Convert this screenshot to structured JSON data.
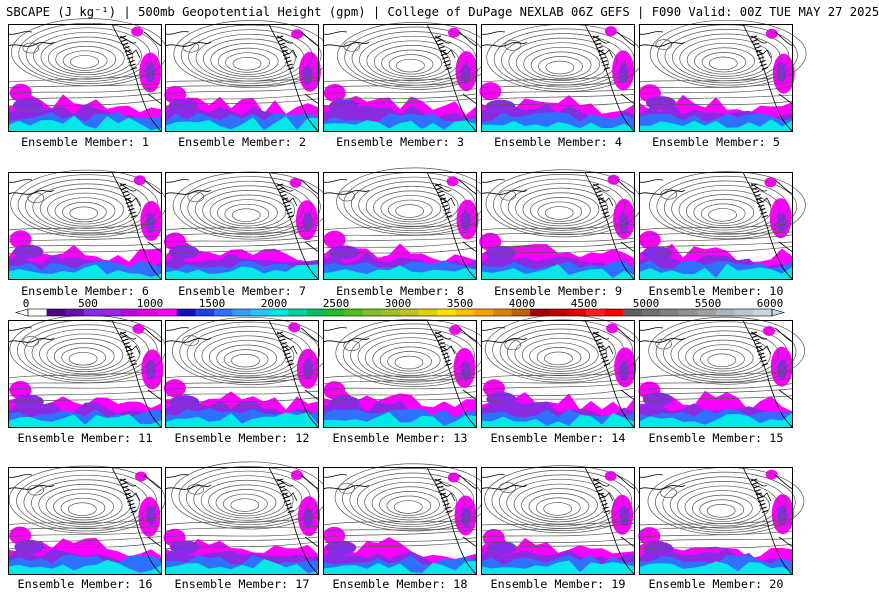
{
  "header": {
    "title": "SBCAPE (J kg⁻¹) | 500mb Geopotential Height (gpm) | College of DuPage NEXLAB 06Z GEFS | F090 Valid: 00Z TUE MAY 27 2025"
  },
  "members": [
    {
      "label": "Ensemble Member: 1"
    },
    {
      "label": "Ensemble Member: 2"
    },
    {
      "label": "Ensemble Member: 3"
    },
    {
      "label": "Ensemble Member: 4"
    },
    {
      "label": "Ensemble Member: 5"
    },
    {
      "label": "Ensemble Member: 6"
    },
    {
      "label": "Ensemble Member: 7"
    },
    {
      "label": "Ensemble Member: 8"
    },
    {
      "label": "Ensemble Member: 9"
    },
    {
      "label": "Ensemble Member: 10"
    },
    {
      "label": "Ensemble Member: 11"
    },
    {
      "label": "Ensemble Member: 12"
    },
    {
      "label": "Ensemble Member: 13"
    },
    {
      "label": "Ensemble Member: 14"
    },
    {
      "label": "Ensemble Member: 15"
    },
    {
      "label": "Ensemble Member: 16"
    },
    {
      "label": "Ensemble Member: 17"
    },
    {
      "label": "Ensemble Member: 18"
    },
    {
      "label": "Ensemble Member: 19"
    },
    {
      "label": "Ensemble Member: 20"
    }
  ],
  "colorbar": {
    "ticks": [
      "0",
      "500",
      "1000",
      "1500",
      "2000",
      "2500",
      "3000",
      "3500",
      "4000",
      "4500",
      "5000",
      "5500",
      "6000"
    ],
    "min": 0,
    "max": 6000,
    "colors": [
      "#ffffff",
      "#4b0082",
      "#6a0dad",
      "#8a2be2",
      "#a020f0",
      "#c000e0",
      "#e000e0",
      "#ff00ff",
      "#1010c0",
      "#2040e0",
      "#3070ff",
      "#30a0ff",
      "#20c8ff",
      "#00e8e8",
      "#00d0a0",
      "#00c060",
      "#20c020",
      "#50c020",
      "#80c020",
      "#a0c020",
      "#c0c020",
      "#e0d000",
      "#ffe000",
      "#ffc000",
      "#ffa000",
      "#e08000",
      "#c06000",
      "#a00000",
      "#c00000",
      "#e00000",
      "#ff2020",
      "#ff0000",
      "#606060",
      "#707070",
      "#808080",
      "#909090",
      "#a0a0a0",
      "#a8b8c0",
      "#b8c8d0",
      "#c8d8e0"
    ]
  },
  "map_colors": {
    "contour": "#555555",
    "coast": "#000000",
    "cape_low": "#ff00ff",
    "cape_mid": "#8a2be2",
    "cape_high": "#3070ff",
    "cape_peak": "#00e8e8"
  }
}
